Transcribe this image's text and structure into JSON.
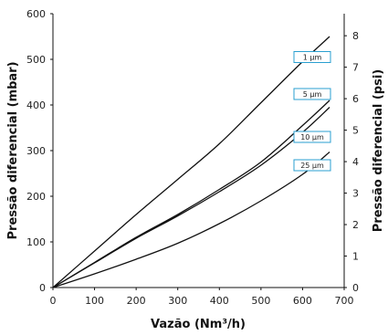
{
  "chart_data": {
    "type": "line",
    "xlabel": "Vazão (Nm³/h)",
    "ylabel": "Pressão diferencial (mbar)",
    "y2label": "Pressão diferencial (psi)",
    "xlim": [
      0,
      700
    ],
    "ylim": [
      0,
      600
    ],
    "y2lim": [
      0,
      8.7
    ],
    "x_ticks": [
      "0",
      "100",
      "200",
      "300",
      "400",
      "500",
      "600",
      "700"
    ],
    "y_ticks": [
      "0",
      "100",
      "200",
      "300",
      "400",
      "500",
      "600"
    ],
    "y2_ticks": [
      "0",
      "1",
      "2",
      "3",
      "4",
      "5",
      "6",
      "7",
      "8"
    ],
    "grid": false,
    "colors": {
      "line": "#111111",
      "legend_border": "#2a9fd0"
    },
    "series": [
      {
        "name": "1 µm",
        "x": [
          0,
          100,
          200,
          300,
          400,
          500,
          600,
          665
        ],
        "y": [
          0,
          80,
          160,
          237,
          315,
          405,
          495,
          550
        ]
      },
      {
        "name": "5 µm",
        "x": [
          0,
          100,
          200,
          300,
          400,
          500,
          600,
          665
        ],
        "y": [
          0,
          55,
          110,
          160,
          215,
          275,
          355,
          410
        ]
      },
      {
        "name": "10 µm",
        "x": [
          0,
          100,
          200,
          300,
          400,
          500,
          600,
          665
        ],
        "y": [
          0,
          54,
          108,
          157,
          210,
          268,
          340,
          395
        ]
      },
      {
        "name": "25 µm",
        "x": [
          0,
          100,
          200,
          300,
          400,
          500,
          600,
          665
        ],
        "y": [
          0,
          30,
          62,
          97,
          140,
          190,
          248,
          297
        ]
      }
    ]
  }
}
